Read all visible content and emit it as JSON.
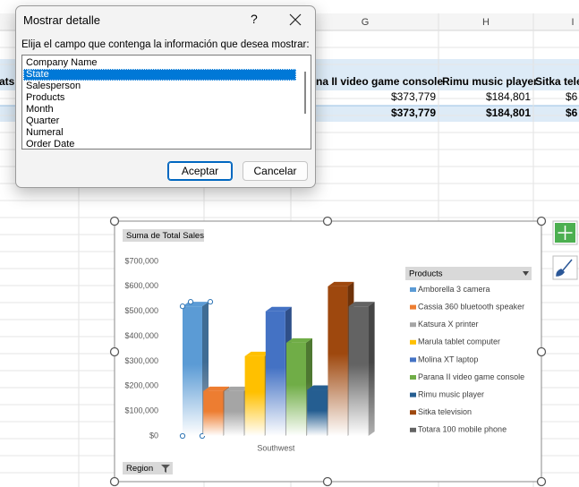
{
  "sheet": {
    "columns": [
      "G",
      "H",
      "I"
    ],
    "header_row": [
      "atsu",
      "na II video game console",
      "Rimu music player",
      "Sitka tele"
    ],
    "value_row": [
      "$373,779",
      "$184,801",
      "$6"
    ],
    "total_row": [
      "$373,779",
      "$184,801",
      "$6"
    ]
  },
  "dialog": {
    "title": "Mostrar detalle",
    "help": "?",
    "prompt": "Elija el campo que contenga la información que desea mostrar:",
    "fields": [
      "Company Name",
      "State",
      "Salesperson",
      "Products",
      "Month",
      "Quarter",
      "Numeral",
      "Order Date"
    ],
    "selected": 1,
    "ok": "Aceptar",
    "cancel": "Cancelar"
  },
  "chart_data": {
    "type": "bar",
    "title": "Suma de Total Sales",
    "categories": [
      "Southwest"
    ],
    "series": [
      {
        "name": "Amborella 3 camera",
        "color": "#5b9bd5",
        "values": [
          520000
        ]
      },
      {
        "name": "Cassia 360 bluetooth speaker",
        "color": "#ed7d31",
        "values": [
          180000
        ]
      },
      {
        "name": "Katsura X printer",
        "color": "#a5a5a5",
        "values": [
          180000
        ]
      },
      {
        "name": "Marula tablet computer",
        "color": "#ffc000",
        "values": [
          320000
        ]
      },
      {
        "name": "Molina XT laptop",
        "color": "#4472c4",
        "values": [
          500000
        ]
      },
      {
        "name": "Parana II video game console",
        "color": "#70ad47",
        "values": [
          373779
        ]
      },
      {
        "name": "Rimu music player",
        "color": "#255e91",
        "values": [
          184801
        ]
      },
      {
        "name": "Sitka television",
        "color": "#9e480e",
        "values": [
          600000
        ]
      },
      {
        "name": "Totara 100 mobile phone",
        "color": "#636363",
        "values": [
          520000
        ]
      }
    ],
    "ylim": [
      0,
      700000
    ],
    "yticks": [
      {
        "value": 0,
        "label": "$0"
      },
      {
        "value": 100000,
        "label": "$100,000"
      },
      {
        "value": 200000,
        "label": "$200,000"
      },
      {
        "value": 300000,
        "label": "$300,000"
      },
      {
        "value": 400000,
        "label": "$400,000"
      },
      {
        "value": 500000,
        "label": "$500,000"
      },
      {
        "value": 600000,
        "label": "$600,000"
      },
      {
        "value": 700000,
        "label": "$700,000"
      }
    ],
    "legend_title": "Products",
    "filter_label": "Region"
  }
}
